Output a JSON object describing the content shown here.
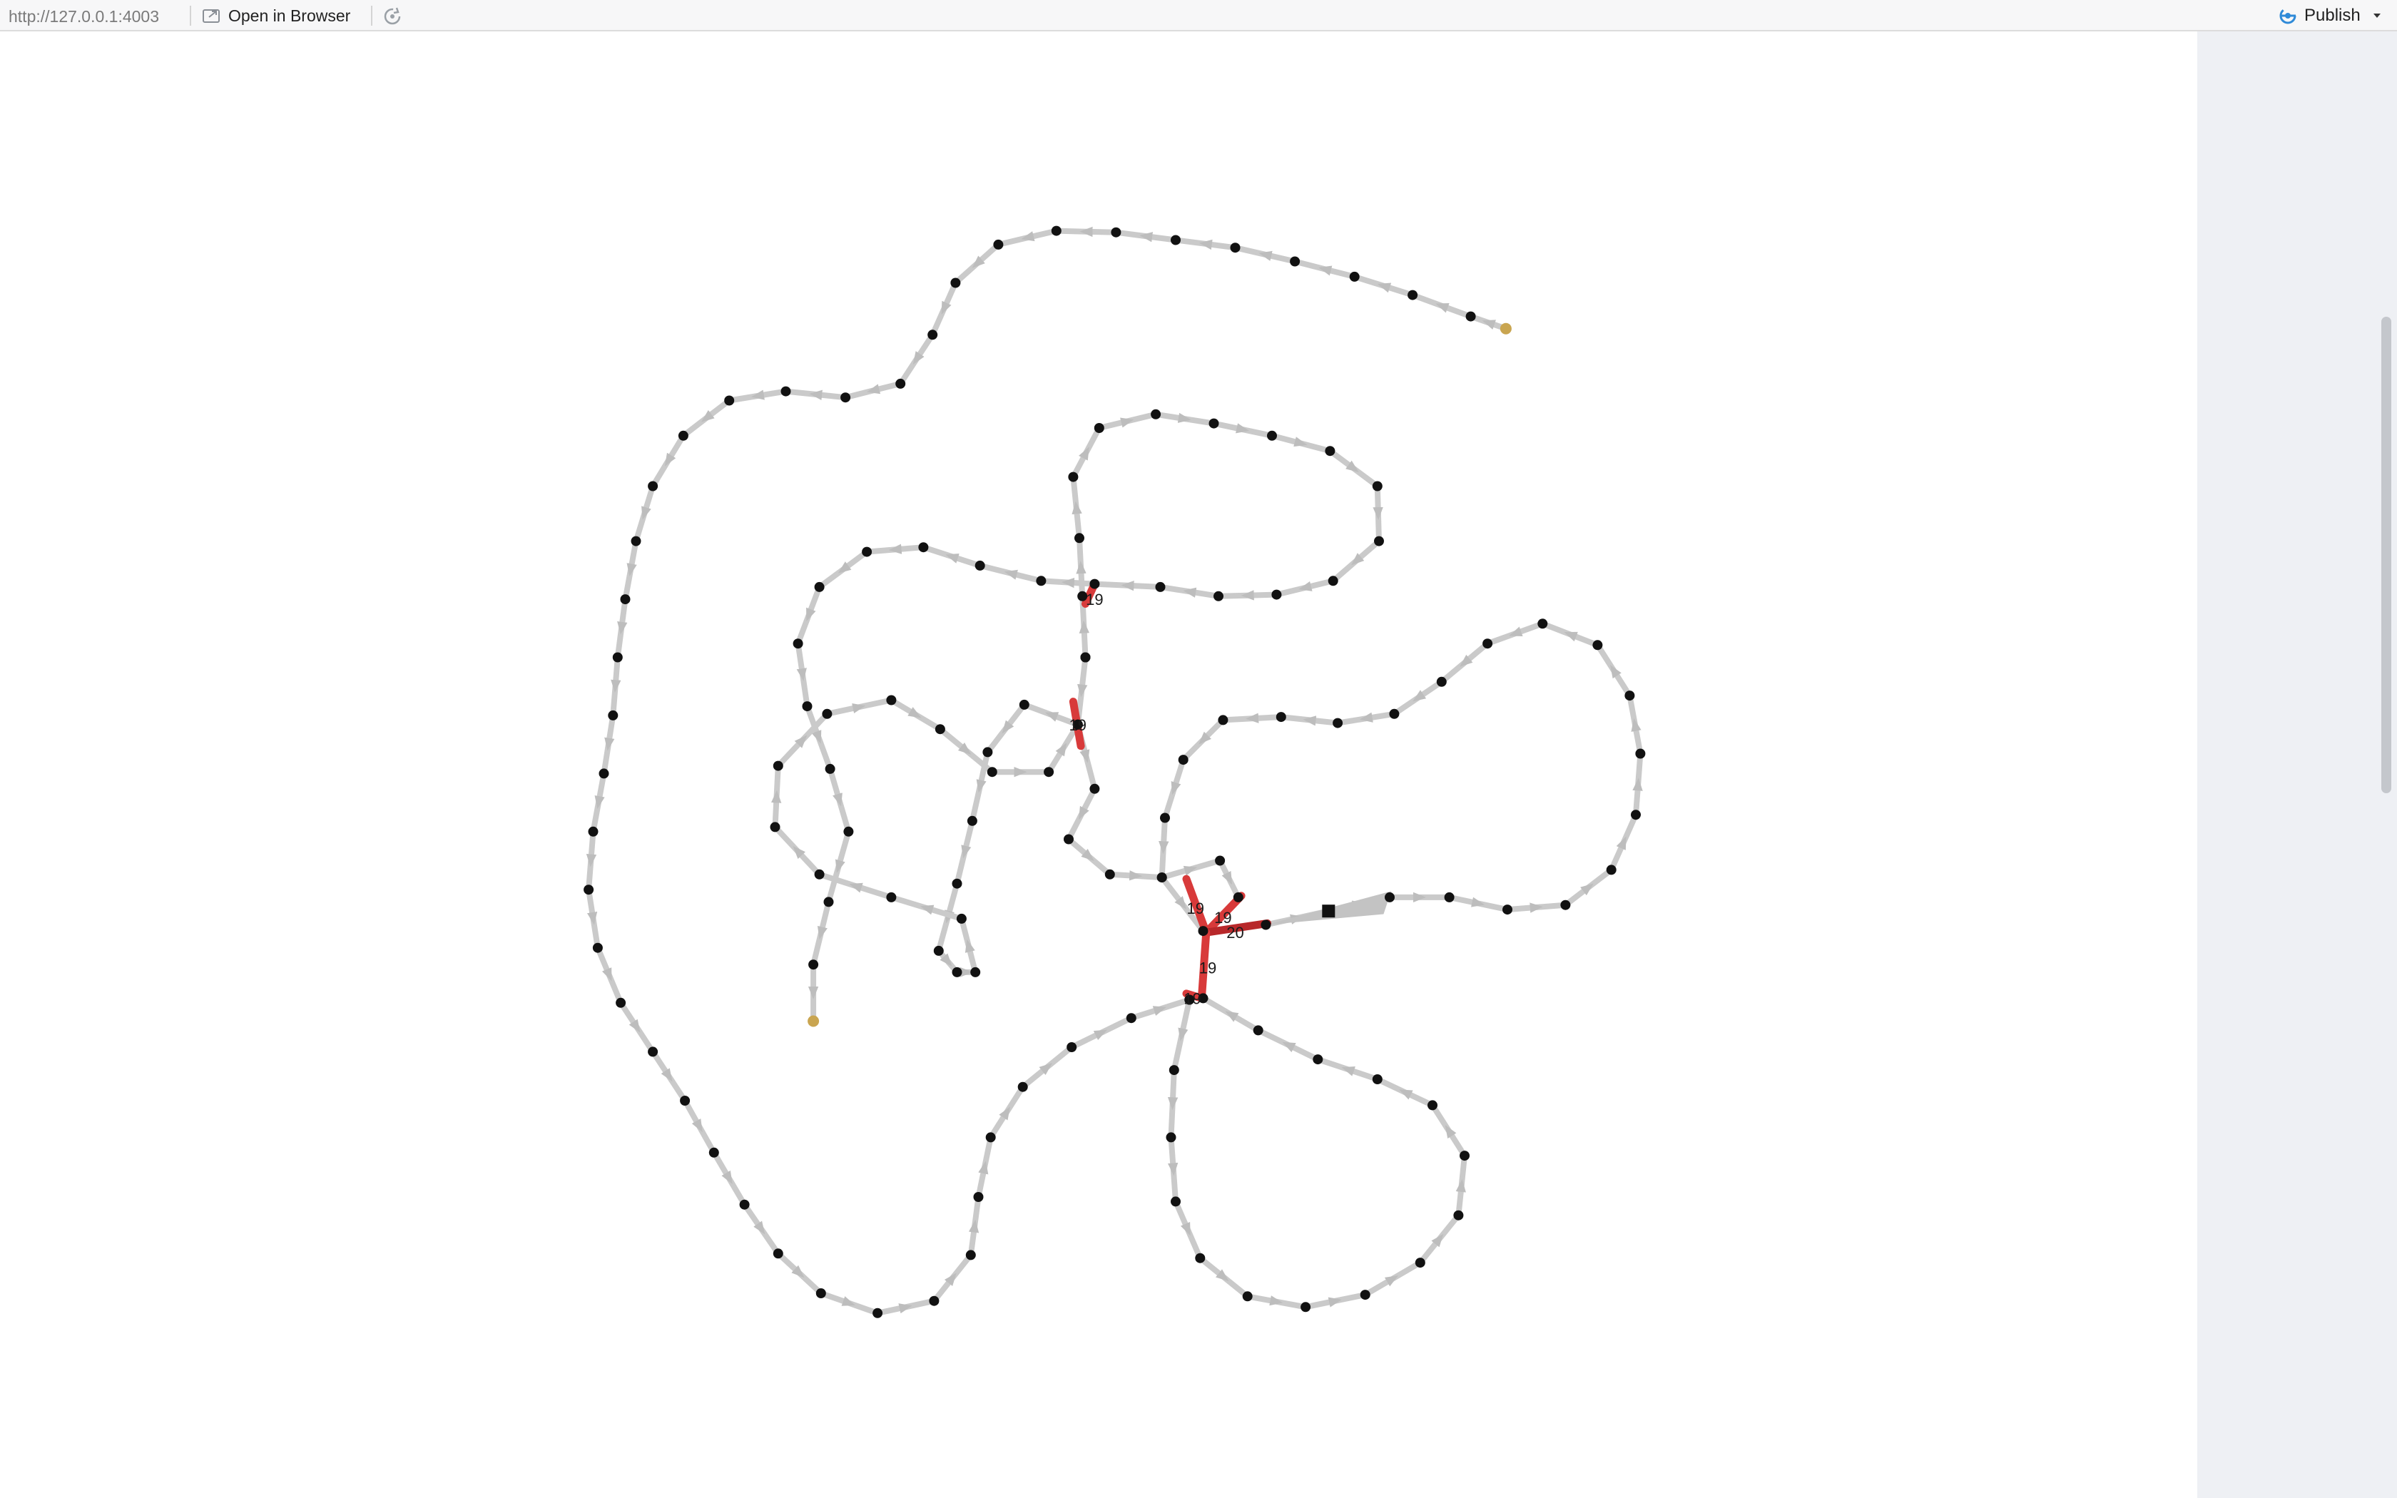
{
  "toolbar": {
    "url": "http://127.0.0.1:4003",
    "open_in_browser_label": "Open in Browser",
    "publish_label": "Publish",
    "publish_icon": "publish-icon",
    "refresh_icon": "refresh-icon",
    "open_icon": "external-window-icon"
  },
  "graph": {
    "colors": {
      "edge": "#cacaca",
      "arrow": "#bdbdbd",
      "node": "#111111",
      "endpoint": "#c9a550",
      "highlight": "#d83a3a",
      "highlight_dark": "#b8282a"
    },
    "edge_labels": [
      "19",
      "19",
      "19",
      "19",
      "20",
      "19",
      "19"
    ]
  }
}
